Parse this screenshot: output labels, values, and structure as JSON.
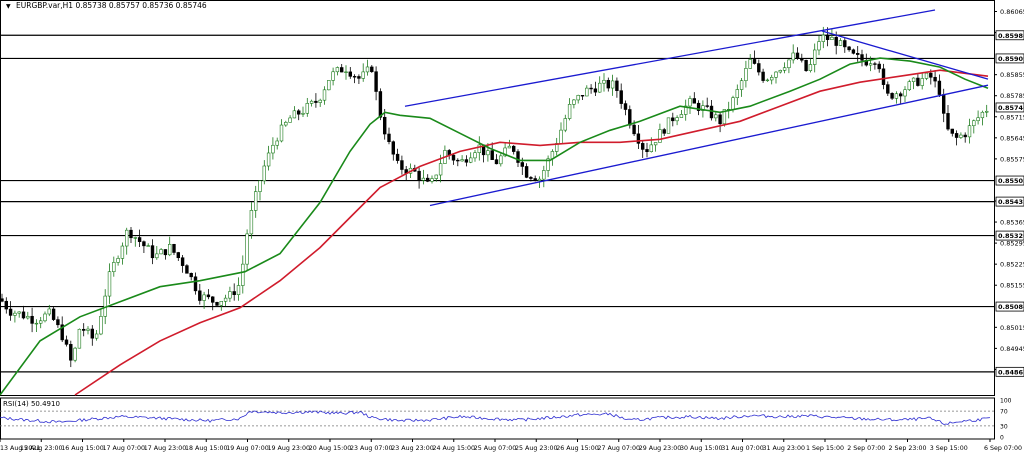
{
  "header": {
    "symbol": "EURGBP.var,H1",
    "ohlc": "0.85738 0.85757 0.85736 0.85746"
  },
  "rsi_panel": {
    "label": "RSI(14) 50.4910",
    "levels": [
      "100",
      "70",
      "30",
      "0"
    ]
  },
  "colors": {
    "candle_bull": "#1a7a1a",
    "candle_bear": "#000000",
    "ma_fast": "#1a8a1a",
    "ma_slow": "#d01c2c",
    "trendline": "#1a1ad0",
    "horizontal": "#000000",
    "rsi": "#2c2cd0"
  },
  "chart_data": {
    "type": "candlestick",
    "symbol": "EURGBP",
    "timeframe": "H1",
    "ylim": [
      0.8479,
      0.8607
    ],
    "price_ticks": [
      "0.86065",
      "0.85995",
      "0.85855",
      "0.85785",
      "0.85715",
      "0.85645",
      "0.85575",
      "0.85435",
      "0.85365",
      "0.85295",
      "0.85225",
      "0.85155",
      "0.85015",
      "0.84945",
      "0.84875"
    ],
    "level_labels": [
      "0.85986",
      "0.85909",
      "0.85746",
      "0.85503",
      "0.85433",
      "0.85320",
      "0.85084",
      "0.84867"
    ],
    "horizontal_levels": [
      0.85986,
      0.85909,
      0.85503,
      0.85433,
      0.8532,
      0.85084,
      0.84867
    ],
    "current_price": 0.85746,
    "time_labels": [
      "13 Aug 2021",
      "15 Aug 23:00",
      "16 Aug 15:00",
      "17 Aug 07:00",
      "17 Aug 23:00",
      "18 Aug 15:00",
      "19 Aug 07:00",
      "19 Aug 23:00",
      "20 Aug 15:00",
      "23 Aug 07:00",
      "23 Aug 23:00",
      "24 Aug 15:00",
      "25 Aug 07:00",
      "25 Aug 23:00",
      "26 Aug 15:00",
      "27 Aug 07:00",
      "29 Aug 23:00",
      "30 Aug 15:00",
      "31 Aug 07:00",
      "31 Aug 23:00",
      "1 Sep 15:00",
      "2 Sep 07:00",
      "2 Sep 23:00",
      "3 Sep 15:00",
      "6 Sep 07:00"
    ],
    "price_path": [
      [
        0,
        0.8511
      ],
      [
        10,
        0.8507
      ],
      [
        20,
        0.8506
      ],
      [
        35,
        0.8504
      ],
      [
        50,
        0.8506
      ],
      [
        62,
        0.8499
      ],
      [
        72,
        0.8489
      ],
      [
        80,
        0.8502
      ],
      [
        95,
        0.8497
      ],
      [
        108,
        0.8517
      ],
      [
        118,
        0.8526
      ],
      [
        128,
        0.8534
      ],
      [
        140,
        0.853
      ],
      [
        155,
        0.8525
      ],
      [
        170,
        0.8528
      ],
      [
        185,
        0.8522
      ],
      [
        200,
        0.8512
      ],
      [
        215,
        0.851
      ],
      [
        230,
        0.8512
      ],
      [
        240,
        0.8516
      ],
      [
        248,
        0.8535
      ],
      [
        262,
        0.8553
      ],
      [
        275,
        0.8564
      ],
      [
        290,
        0.8571
      ],
      [
        305,
        0.8574
      ],
      [
        318,
        0.8577
      ],
      [
        330,
        0.8585
      ],
      [
        345,
        0.8588
      ],
      [
        360,
        0.8584
      ],
      [
        372,
        0.8588
      ],
      [
        378,
        0.8575
      ],
      [
        388,
        0.8563
      ],
      [
        398,
        0.8555
      ],
      [
        415,
        0.8553
      ],
      [
        430,
        0.8548
      ],
      [
        445,
        0.856
      ],
      [
        460,
        0.8556
      ],
      [
        478,
        0.8562
      ],
      [
        495,
        0.8556
      ],
      [
        512,
        0.8562
      ],
      [
        525,
        0.8553
      ],
      [
        540,
        0.8551
      ],
      [
        555,
        0.8562
      ],
      [
        570,
        0.8575
      ],
      [
        585,
        0.858
      ],
      [
        600,
        0.8582
      ],
      [
        615,
        0.8582
      ],
      [
        630,
        0.857
      ],
      [
        645,
        0.856
      ],
      [
        660,
        0.8566
      ],
      [
        675,
        0.8572
      ],
      [
        690,
        0.8576
      ],
      [
        705,
        0.8574
      ],
      [
        720,
        0.857
      ],
      [
        735,
        0.8578
      ],
      [
        750,
        0.859
      ],
      [
        765,
        0.8584
      ],
      [
        780,
        0.8588
      ],
      [
        795,
        0.8592
      ],
      [
        808,
        0.8586
      ],
      [
        820,
        0.8598
      ],
      [
        835,
        0.8597
      ],
      [
        850,
        0.8592
      ],
      [
        865,
        0.859
      ],
      [
        878,
        0.8591
      ],
      [
        885,
        0.8578
      ],
      [
        900,
        0.858
      ],
      [
        915,
        0.8583
      ],
      [
        930,
        0.8585
      ],
      [
        940,
        0.858
      ],
      [
        945,
        0.8568
      ],
      [
        955,
        0.8564
      ],
      [
        965,
        0.8566
      ],
      [
        975,
        0.857
      ],
      [
        983,
        0.8573
      ],
      [
        990,
        0.8575
      ]
    ],
    "ma_fast_path": [
      [
        0,
        0.8479
      ],
      [
        40,
        0.8497
      ],
      [
        80,
        0.8505
      ],
      [
        120,
        0.851
      ],
      [
        160,
        0.8515
      ],
      [
        200,
        0.8517
      ],
      [
        245,
        0.852
      ],
      [
        280,
        0.8526
      ],
      [
        320,
        0.8543
      ],
      [
        350,
        0.856
      ],
      [
        370,
        0.8569
      ],
      [
        385,
        0.8573
      ],
      [
        400,
        0.8572
      ],
      [
        430,
        0.8571
      ],
      [
        460,
        0.8566
      ],
      [
        490,
        0.8561
      ],
      [
        520,
        0.8557
      ],
      [
        550,
        0.8557
      ],
      [
        580,
        0.8563
      ],
      [
        610,
        0.8567
      ],
      [
        640,
        0.857
      ],
      [
        680,
        0.8575
      ],
      [
        720,
        0.8573
      ],
      [
        750,
        0.8575
      ],
      [
        790,
        0.858
      ],
      [
        820,
        0.8584
      ],
      [
        850,
        0.8589
      ],
      [
        880,
        0.8591
      ],
      [
        910,
        0.859
      ],
      [
        940,
        0.8588
      ],
      [
        965,
        0.8584
      ],
      [
        988,
        0.8581
      ]
    ],
    "ma_slow_path": [
      [
        75,
        0.8479
      ],
      [
        120,
        0.8489
      ],
      [
        160,
        0.8497
      ],
      [
        200,
        0.8503
      ],
      [
        240,
        0.8508
      ],
      [
        280,
        0.8517
      ],
      [
        320,
        0.8528
      ],
      [
        350,
        0.8538
      ],
      [
        380,
        0.8548
      ],
      [
        420,
        0.8555
      ],
      [
        460,
        0.856
      ],
      [
        500,
        0.8563
      ],
      [
        540,
        0.8562
      ],
      [
        580,
        0.8563
      ],
      [
        620,
        0.8563
      ],
      [
        660,
        0.8564
      ],
      [
        700,
        0.8567
      ],
      [
        740,
        0.857
      ],
      [
        780,
        0.8575
      ],
      [
        820,
        0.858
      ],
      [
        860,
        0.8583
      ],
      [
        900,
        0.8585
      ],
      [
        940,
        0.8587
      ],
      [
        988,
        0.8585
      ]
    ],
    "trendlines": [
      {
        "from": [
          405,
          0.8575
        ],
        "to": [
          935,
          0.8607
        ]
      },
      {
        "from": [
          430,
          0.8542
        ],
        "to": [
          988,
          0.8582
        ]
      },
      {
        "from": [
          822,
          0.86
        ],
        "to": [
          988,
          0.8584
        ]
      }
    ],
    "rsi": {
      "ylim": [
        0,
        100
      ],
      "levels": [
        30,
        70
      ],
      "path": [
        [
          0,
          52
        ],
        [
          30,
          45
        ],
        [
          60,
          40
        ],
        [
          90,
          48
        ],
        [
          120,
          55
        ],
        [
          150,
          52
        ],
        [
          180,
          48
        ],
        [
          210,
          44
        ],
        [
          240,
          50
        ],
        [
          250,
          70
        ],
        [
          280,
          66
        ],
        [
          310,
          68
        ],
        [
          340,
          64
        ],
        [
          360,
          67
        ],
        [
          372,
          52
        ],
        [
          400,
          44
        ],
        [
          430,
          46
        ],
        [
          460,
          55
        ],
        [
          490,
          50
        ],
        [
          520,
          46
        ],
        [
          550,
          52
        ],
        [
          580,
          60
        ],
        [
          610,
          62
        ],
        [
          630,
          45
        ],
        [
          660,
          52
        ],
        [
          690,
          55
        ],
        [
          720,
          50
        ],
        [
          750,
          58
        ],
        [
          780,
          55
        ],
        [
          810,
          57
        ],
        [
          840,
          52
        ],
        [
          870,
          48
        ],
        [
          900,
          46
        ],
        [
          930,
          50
        ],
        [
          945,
          35
        ],
        [
          960,
          42
        ],
        [
          975,
          46
        ],
        [
          990,
          50
        ]
      ]
    }
  }
}
